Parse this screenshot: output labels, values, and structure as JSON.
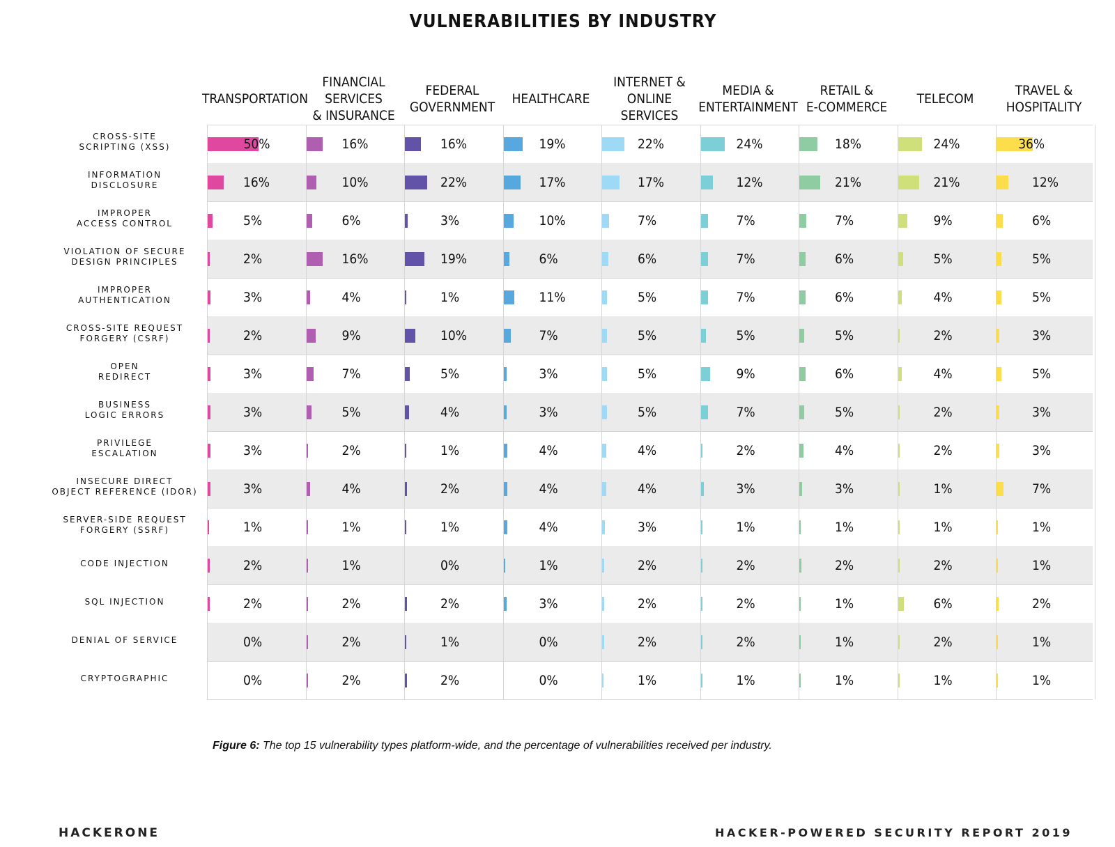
{
  "chart_data": {
    "type": "table",
    "title": "VULNERABILITIES BY INDUSTRY",
    "industries": [
      {
        "name": "TRANSPORTATION",
        "color": "#e0479e"
      },
      {
        "name": "FINANCIAL SERVICES\n& INSURANCE",
        "color": "#b05eb0"
      },
      {
        "name": "FEDERAL\nGOVERNMENT",
        "color": "#6253a8"
      },
      {
        "name": "HEALTHCARE",
        "color": "#56a8de"
      },
      {
        "name": "INTERNET &\nONLINE SERVICES",
        "color": "#9ed9f6"
      },
      {
        "name": "MEDIA &\nENTERTAINMENT",
        "color": "#7ccfd6"
      },
      {
        "name": "RETAIL &\nE-COMMERCE",
        "color": "#8fcca1"
      },
      {
        "name": "TELECOM",
        "color": "#cfe07a"
      },
      {
        "name": "TRAVEL &\nHOSPITALITY",
        "color": "#fcdd4c"
      }
    ],
    "rows": [
      {
        "label": "CROSS-SITE\nSCRIPTING (XSS)",
        "values": [
          50,
          16,
          16,
          19,
          22,
          24,
          18,
          24,
          36
        ]
      },
      {
        "label": "INFORMATION\nDISCLOSURE",
        "values": [
          16,
          10,
          22,
          17,
          17,
          12,
          21,
          21,
          12
        ]
      },
      {
        "label": "IMPROPER\nACCESS CONTROL",
        "values": [
          5,
          6,
          3,
          10,
          7,
          7,
          7,
          9,
          6
        ]
      },
      {
        "label": "VIOLATION OF SECURE\nDESIGN PRINCIPLES",
        "values": [
          2,
          16,
          19,
          6,
          6,
          7,
          6,
          5,
          5
        ]
      },
      {
        "label": "IMPROPER\nAUTHENTICATION",
        "values": [
          3,
          4,
          1,
          11,
          5,
          7,
          6,
          4,
          5
        ]
      },
      {
        "label": "CROSS-SITE REQUEST\nFORGERY (CSRF)",
        "values": [
          2,
          9,
          10,
          7,
          5,
          5,
          5,
          2,
          3
        ]
      },
      {
        "label": "OPEN\nREDIRECT",
        "values": [
          3,
          7,
          5,
          3,
          5,
          9,
          6,
          4,
          5
        ]
      },
      {
        "label": "BUSINESS\nLOGIC ERRORS",
        "values": [
          3,
          5,
          4,
          3,
          5,
          7,
          5,
          2,
          3
        ]
      },
      {
        "label": "PRIVILEGE\nESCALATION",
        "values": [
          3,
          2,
          1,
          4,
          4,
          2,
          4,
          2,
          3
        ]
      },
      {
        "label": "INSECURE DIRECT\nOBJECT REFERENCE (IDOR)",
        "values": [
          3,
          4,
          2,
          4,
          4,
          3,
          3,
          1,
          7
        ]
      },
      {
        "label": "SERVER-SIDE REQUEST\nFORGERY (SSRF)",
        "values": [
          1,
          1,
          1,
          4,
          3,
          1,
          1,
          1,
          1
        ]
      },
      {
        "label": "CODE INJECTION",
        "values": [
          2,
          1,
          0,
          1,
          2,
          2,
          2,
          2,
          1
        ]
      },
      {
        "label": "SQL INJECTION",
        "values": [
          2,
          2,
          2,
          3,
          2,
          2,
          1,
          6,
          2
        ]
      },
      {
        "label": "DENIAL OF SERVICE",
        "values": [
          0,
          2,
          1,
          0,
          2,
          2,
          1,
          2,
          1
        ]
      },
      {
        "label": "CRYPTOGRAPHIC",
        "values": [
          0,
          2,
          2,
          0,
          1,
          1,
          1,
          1,
          1
        ]
      }
    ],
    "unit": "%"
  },
  "caption": {
    "prefix": "Figure 6:",
    "text": " The top 15 vulnerability types platform-wide, and the percentage of vulnerabilities received per industry."
  },
  "footer": {
    "left": "HACKERONE",
    "right": "HACKER-POWERED SECURITY REPORT 2019"
  }
}
